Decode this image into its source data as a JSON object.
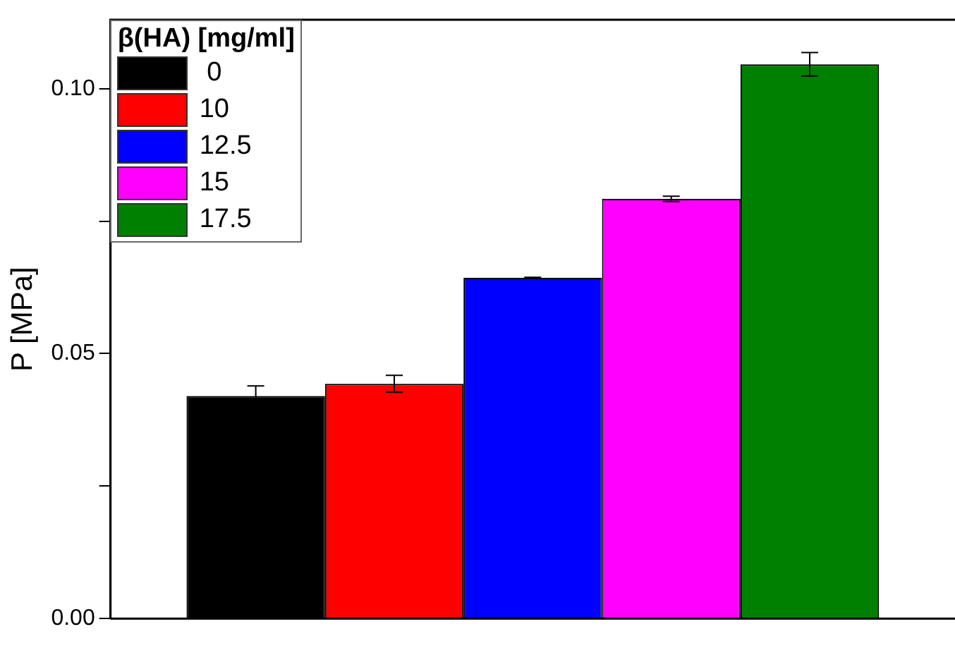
{
  "chart_data": {
    "type": "bar",
    "ylabel": "P [MPa]",
    "legend_title": "β(HA) [mg/ml]",
    "categories": [
      null
    ],
    "series": [
      {
        "name": " 0",
        "color": "#000000",
        "values": [
          0.042
        ],
        "errors": [
          0.0019
        ]
      },
      {
        "name": "10",
        "color": "#ff0000",
        "values": [
          0.0443
        ],
        "errors": [
          0.0016
        ]
      },
      {
        "name": "12.5",
        "color": "#0000ff",
        "values": [
          0.0643
        ],
        "errors": [
          0.0001
        ]
      },
      {
        "name": "15",
        "color": "#ff00ff",
        "values": [
          0.0792
        ],
        "errors": [
          0.0005
        ]
      },
      {
        "name": "17.5",
        "color": "#008000",
        "values": [
          0.1046
        ],
        "errors": [
          0.0022
        ]
      }
    ],
    "ylim": [
      0,
      0.113
    ],
    "yticks": [
      {
        "value": 0,
        "label": "0.00"
      },
      {
        "value": 0.025,
        "label": null
      },
      {
        "value": 0.05,
        "label": "0.05"
      },
      {
        "value": 0.075,
        "label": null
      },
      {
        "value": 0.1,
        "label": "0.10"
      }
    ],
    "grid": false,
    "legend": "top left"
  }
}
